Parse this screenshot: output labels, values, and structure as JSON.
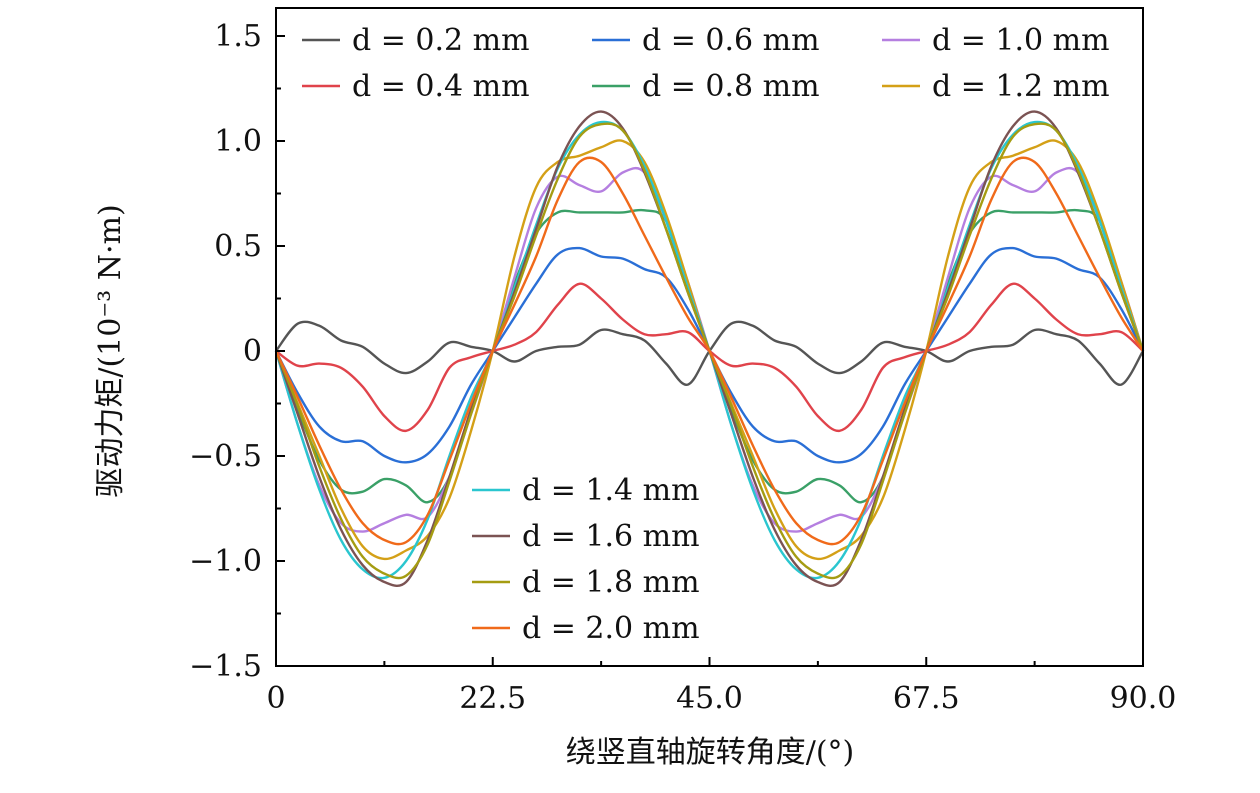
{
  "chart_data": {
    "type": "line",
    "title": "",
    "xlabel": "绕竖直轴旋转角度/(°)",
    "ylabel": "驱动力矩/(10⁻³ N·m)",
    "xlim": [
      0,
      90
    ],
    "ylim": [
      -1.5,
      1.63
    ],
    "x_ticks": [
      "0",
      "22.5",
      "45.0",
      "67.5",
      "90.0"
    ],
    "x_tick_values": [
      0,
      22.5,
      45,
      67.5,
      90
    ],
    "y_ticks": [
      "1.5",
      "1.0",
      "0.5",
      "0",
      "−0.5",
      "−1.0",
      "−1.5"
    ],
    "y_tick_values": [
      1.5,
      1.0,
      0.5,
      0,
      -0.5,
      -1.0,
      -1.5
    ],
    "grid": false,
    "legend_placement": [
      "top-left",
      "bottom-center"
    ],
    "x_half": [
      0,
      2.25,
      4.5,
      6.75,
      9,
      11.25,
      13.5,
      15.75,
      18,
      20.25,
      22.5,
      24.75,
      27,
      29.25,
      31.5,
      33.75,
      36,
      38.25,
      40.5,
      42.75,
      45
    ],
    "repeat_period": 45,
    "series": [
      {
        "name": "d = 0.2 mm",
        "color": "#555555",
        "values": [
          0,
          0.13,
          0.12,
          0.05,
          0.02,
          -0.06,
          -0.105,
          -0.05,
          0.04,
          0.02,
          0,
          -0.05,
          0.0,
          0.02,
          0.03,
          0.1,
          0.08,
          0.05,
          -0.06,
          -0.16,
          0
        ]
      },
      {
        "name": "d = 0.4 mm",
        "color": "#e0434b",
        "values": [
          0,
          -0.07,
          -0.06,
          -0.08,
          -0.17,
          -0.31,
          -0.38,
          -0.28,
          -0.08,
          -0.03,
          0,
          0.03,
          0.09,
          0.22,
          0.32,
          0.25,
          0.15,
          0.08,
          0.08,
          0.09,
          0
        ]
      },
      {
        "name": "d = 0.6 mm",
        "color": "#2a6fd6",
        "values": [
          0,
          -0.2,
          -0.36,
          -0.43,
          -0.43,
          -0.5,
          -0.53,
          -0.49,
          -0.36,
          -0.16,
          0,
          0.16,
          0.32,
          0.46,
          0.49,
          0.45,
          0.44,
          0.39,
          0.35,
          0.2,
          0
        ]
      },
      {
        "name": "d = 0.8 mm",
        "color": "#3aa067",
        "values": [
          0,
          -0.28,
          -0.52,
          -0.66,
          -0.67,
          -0.61,
          -0.64,
          -0.72,
          -0.6,
          -0.28,
          0,
          0.32,
          0.56,
          0.66,
          0.66,
          0.66,
          0.66,
          0.67,
          0.62,
          0.32,
          0
        ]
      },
      {
        "name": "d = 1.0 mm",
        "color": "#b57fe0",
        "values": [
          0,
          -0.35,
          -0.64,
          -0.82,
          -0.86,
          -0.82,
          -0.78,
          -0.79,
          -0.6,
          -0.3,
          0,
          0.35,
          0.68,
          0.83,
          0.79,
          0.76,
          0.85,
          0.85,
          0.62,
          0.33,
          0
        ]
      },
      {
        "name": "d = 1.2 mm",
        "color": "#d4a017",
        "values": [
          0,
          -0.25,
          -0.5,
          -0.75,
          -0.93,
          -0.99,
          -0.95,
          -0.88,
          -0.7,
          -0.38,
          0,
          0.45,
          0.78,
          0.9,
          0.93,
          0.97,
          1.0,
          0.9,
          0.65,
          0.33,
          0
        ]
      },
      {
        "name": "d = 1.4 mm",
        "color": "#2ac6cf",
        "values": [
          0,
          -0.35,
          -0.66,
          -0.9,
          -1.04,
          -1.08,
          -1.0,
          -0.8,
          -0.5,
          -0.22,
          0,
          0.3,
          0.6,
          0.87,
          1.03,
          1.09,
          1.05,
          0.88,
          0.62,
          0.3,
          0
        ]
      },
      {
        "name": "d = 1.6 mm",
        "color": "#7b5353",
        "values": [
          0,
          -0.3,
          -0.6,
          -0.85,
          -1.02,
          -1.1,
          -1.1,
          -0.9,
          -0.6,
          -0.28,
          0,
          0.28,
          0.58,
          0.88,
          1.07,
          1.14,
          1.06,
          0.85,
          0.58,
          0.28,
          0
        ]
      },
      {
        "name": "d = 1.8 mm",
        "color": "#a59c12",
        "values": [
          0,
          -0.26,
          -0.55,
          -0.8,
          -0.98,
          -1.06,
          -1.07,
          -0.92,
          -0.62,
          -0.3,
          0,
          0.26,
          0.55,
          0.82,
          1.02,
          1.08,
          1.05,
          0.86,
          0.58,
          0.28,
          0
        ]
      },
      {
        "name": "d = 2.0 mm",
        "color": "#f06a1a",
        "values": [
          0,
          -0.22,
          -0.45,
          -0.66,
          -0.82,
          -0.9,
          -0.91,
          -0.78,
          -0.52,
          -0.25,
          0,
          0.22,
          0.45,
          0.72,
          0.9,
          0.9,
          0.75,
          0.55,
          0.35,
          0.16,
          0
        ]
      }
    ]
  }
}
